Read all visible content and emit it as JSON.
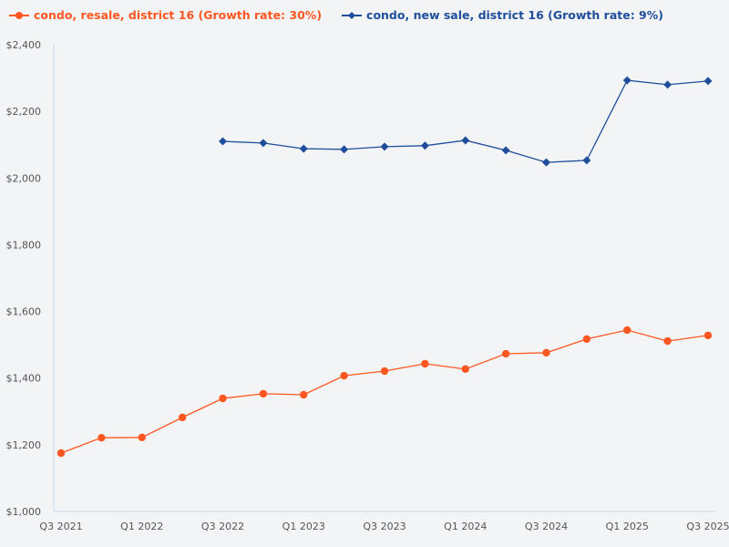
{
  "chart_data": {
    "type": "line",
    "title": "",
    "xlabel": "",
    "ylabel": "",
    "ylim": [
      1000,
      2400
    ],
    "yticks": [
      "$1,000",
      "$1,200",
      "$1,400",
      "$1,600",
      "$1,800",
      "$2,000",
      "$2,200",
      "$2,400"
    ],
    "ytick_values": [
      1000,
      1200,
      1400,
      1600,
      1800,
      2000,
      2200,
      2400
    ],
    "categories": [
      "Q3 2021",
      "Q4 2021",
      "Q1 2022",
      "Q2 2022",
      "Q3 2022",
      "Q4 2022",
      "Q1 2023",
      "Q2 2023",
      "Q3 2023",
      "Q4 2023",
      "Q1 2024",
      "Q2 2024",
      "Q3 2024",
      "Q4 2024",
      "Q1 2025",
      "Q2 2025",
      "Q3 2025"
    ],
    "xtick_labels": [
      "Q3 2021",
      "Q1 2022",
      "Q3 2022",
      "Q1 2023",
      "Q3 2023",
      "Q1 2024",
      "Q3 2024",
      "Q1 2025",
      "Q3 2025"
    ],
    "grid": false,
    "legend_position": "top-left",
    "series": [
      {
        "name": "condo, resale, district 16 (Growth rate: 30%)",
        "color": "#ff5722",
        "marker": "circle",
        "values": [
          1175,
          1221,
          1222,
          1282,
          1339,
          1353,
          1350,
          1407,
          1421,
          1443,
          1427,
          1473,
          1476,
          1517,
          1544,
          1511,
          1528
        ]
      },
      {
        "name": "condo, new sale, district 16 (Growth rate: 9%)",
        "color": "#1f4e9c",
        "marker": "diamond",
        "values": [
          null,
          null,
          null,
          null,
          2110,
          2105,
          2088,
          2086,
          2094,
          2097,
          2113,
          2083,
          2047,
          2053,
          2293,
          2280,
          2291
        ]
      }
    ]
  }
}
